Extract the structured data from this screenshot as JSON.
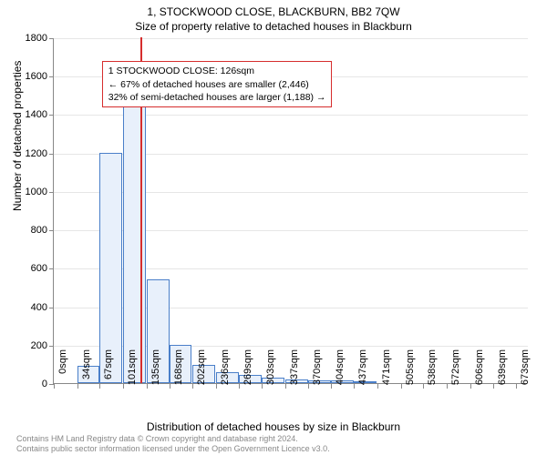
{
  "title_line1": "1, STOCKWOOD CLOSE, BLACKBURN, BB2 7QW",
  "title_line2": "Size of property relative to detached houses in Blackburn",
  "y_axis_label": "Number of detached properties",
  "x_axis_label": "Distribution of detached houses by size in Blackburn",
  "chart": {
    "type": "histogram",
    "ylim": [
      0,
      1800
    ],
    "ytick_step": 200,
    "yticks": [
      0,
      200,
      400,
      600,
      800,
      1000,
      1200,
      1400,
      1600,
      1800
    ],
    "xlim": [
      0,
      690
    ],
    "xticks": [
      0,
      34,
      67,
      101,
      135,
      168,
      202,
      236,
      269,
      303,
      337,
      370,
      404,
      437,
      471,
      505,
      538,
      572,
      606,
      639,
      673
    ],
    "xtick_labels": [
      "0sqm",
      "34sqm",
      "67sqm",
      "101sqm",
      "135sqm",
      "168sqm",
      "202sqm",
      "236sqm",
      "269sqm",
      "303sqm",
      "337sqm",
      "370sqm",
      "404sqm",
      "437sqm",
      "471sqm",
      "505sqm",
      "538sqm",
      "572sqm",
      "606sqm",
      "639sqm",
      "673sqm"
    ],
    "bar_width_sqm": 33,
    "bars": [
      {
        "x_start": 34,
        "value": 90
      },
      {
        "x_start": 67,
        "value": 1200
      },
      {
        "x_start": 101,
        "value": 1470
      },
      {
        "x_start": 135,
        "value": 540
      },
      {
        "x_start": 168,
        "value": 200
      },
      {
        "x_start": 202,
        "value": 95
      },
      {
        "x_start": 236,
        "value": 55
      },
      {
        "x_start": 269,
        "value": 45
      },
      {
        "x_start": 303,
        "value": 30
      },
      {
        "x_start": 337,
        "value": 20
      },
      {
        "x_start": 370,
        "value": 15
      },
      {
        "x_start": 404,
        "value": 15
      },
      {
        "x_start": 437,
        "value": 8
      }
    ],
    "bar_fill": "#e8f0fb",
    "bar_stroke": "#4a7fc9",
    "grid_color": "#e6e6e6",
    "axis_color": "#888888",
    "marker": {
      "x_sqm": 126,
      "color": "#d62d2d"
    }
  },
  "info_box": {
    "line1": "1 STOCKWOOD CLOSE: 126sqm",
    "line2": "← 67% of detached houses are smaller (2,446)",
    "line3": "32% of semi-detached houses are larger (1,188) →",
    "border_color": "#d62d2d",
    "left_sqm": 70,
    "top_value": 1680
  },
  "footer": {
    "line1": "Contains HM Land Registry data © Crown copyright and database right 2024.",
    "line2": "Contains public sector information licensed under the Open Government Licence v3.0."
  }
}
